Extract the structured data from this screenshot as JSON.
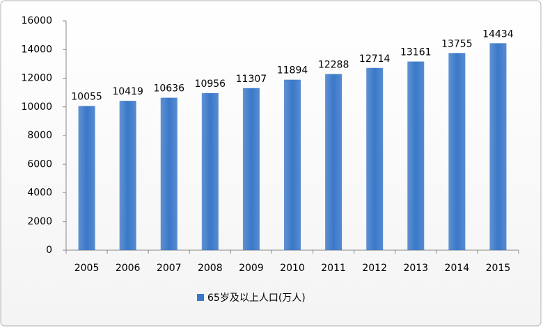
{
  "chart_data": {
    "type": "bar",
    "categories": [
      "2005",
      "2006",
      "2007",
      "2008",
      "2009",
      "2010",
      "2011",
      "2012",
      "2013",
      "2014",
      "2015"
    ],
    "series": [
      {
        "name": "65岁及以上人口(万人)",
        "color": "#3a78c9",
        "values": [
          10055,
          10419,
          10636,
          10956,
          11307,
          11894,
          12288,
          12714,
          13161,
          13755,
          14434
        ]
      }
    ],
    "ylim": [
      0,
      16000
    ],
    "yticks": [
      0,
      2000,
      4000,
      6000,
      8000,
      10000,
      12000,
      14000,
      16000
    ],
    "grid": false,
    "legend": "bottom"
  }
}
